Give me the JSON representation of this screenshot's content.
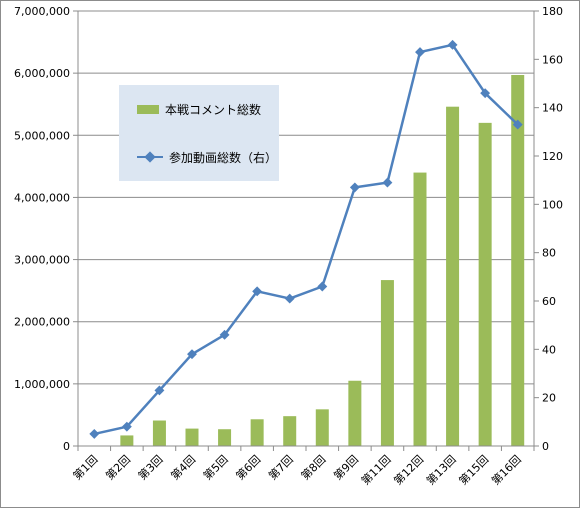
{
  "chart_data": {
    "type": "bar+line",
    "categories": [
      "第1回",
      "第2回",
      "第3回",
      "第4回",
      "第5回",
      "第6回",
      "第7回",
      "第8回",
      "第9回",
      "第11回",
      "第12回",
      "第13回",
      "第15回",
      "第16回"
    ],
    "series": [
      {
        "name": "本戦コメント総数",
        "type": "bar",
        "axis": "left",
        "color": "#9bbb59",
        "values": [
          0,
          170000,
          410000,
          280000,
          270000,
          430000,
          480000,
          590000,
          1050000,
          2670000,
          4400000,
          5460000,
          5200000,
          5970000
        ]
      },
      {
        "name": "参加動画総数（右）",
        "type": "line",
        "axis": "right",
        "color": "#4f81bd",
        "values": [
          5,
          8,
          23,
          38,
          46,
          64,
          61,
          66,
          107,
          109,
          163,
          166,
          146,
          133
        ]
      }
    ],
    "y_left": {
      "min": 0,
      "max": 7000000,
      "step": 1000000,
      "tick_labels": [
        "0",
        "1,000,000",
        "2,000,000",
        "3,000,000",
        "4,000,000",
        "5,000,000",
        "6,000,000",
        "7,000,000"
      ]
    },
    "y_right": {
      "min": 0,
      "max": 180,
      "step": 20,
      "tick_labels": [
        "0",
        "20",
        "40",
        "60",
        "80",
        "100",
        "120",
        "140",
        "160",
        "180"
      ]
    },
    "grid": true,
    "legend_position": "inside upper-left"
  },
  "legend": {
    "bar_label": "本戦コメント総数",
    "line_label": "参加動画総数（右）"
  }
}
